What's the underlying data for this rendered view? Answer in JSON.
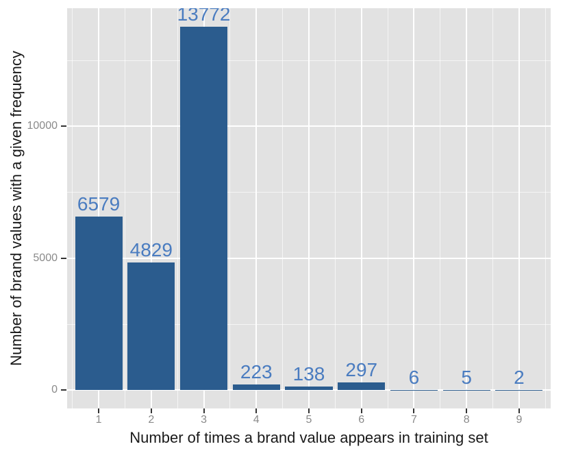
{
  "chart_data": {
    "type": "bar",
    "title": "",
    "xlabel": "Number of times a brand value appears in training set",
    "ylabel": "Number of brand values with a given frequency",
    "categories": [
      "1",
      "2",
      "3",
      "4",
      "5",
      "6",
      "7",
      "8",
      "9"
    ],
    "values": [
      6579,
      4829,
      13772,
      223,
      138,
      297,
      6,
      5,
      2
    ],
    "bar_labels": [
      "6579",
      "4829",
      "13772",
      "223",
      "138",
      "297",
      "6",
      "5",
      "2"
    ],
    "y_ticks": [
      0,
      5000,
      10000
    ],
    "y_tick_labels": [
      "0",
      "5000",
      "10000"
    ],
    "y_minor_ticks": [
      2500,
      7500,
      12500
    ],
    "ylim": [
      -688.6,
      14460.6
    ],
    "xlim_expansion_units": 0.6,
    "bar_width_units": 0.9,
    "grid": "white major and minor gridlines on gray panel",
    "legend": "none",
    "colors": {
      "bar_fill": "#2b5c8e",
      "bar_label": "#4a7cc0",
      "panel_bg": "#e2e2e2",
      "gridline": "#ffffff",
      "tick_label": "#8a8a8a",
      "axis_title": "#1a1a1a",
      "tick_mark": "#333333",
      "background": "#ffffff"
    }
  }
}
